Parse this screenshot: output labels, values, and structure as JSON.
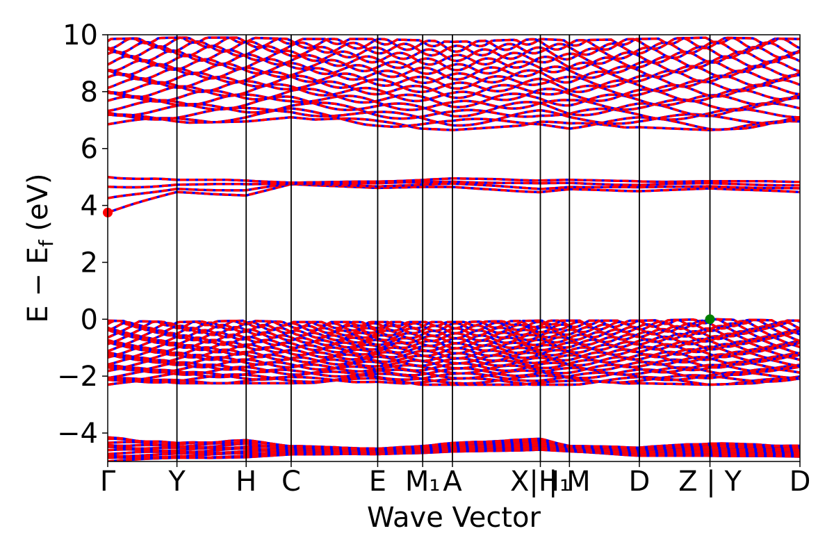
{
  "chart_data": {
    "type": "line",
    "title": "",
    "xlabel": "Wave Vector",
    "ylabel": "E − E",
    "ylabel_sub": "f",
    "ylabel_unit": " (eV)",
    "ylim": [
      -5,
      10
    ],
    "yticks": [
      {
        "value": 10,
        "label": "10"
      },
      {
        "value": 8,
        "label": "8"
      },
      {
        "value": 6,
        "label": "6"
      },
      {
        "value": 4,
        "label": "4"
      },
      {
        "value": 2,
        "label": "2"
      },
      {
        "value": 0,
        "label": "0"
      },
      {
        "value": -2,
        "label": "−2"
      },
      {
        "value": -4,
        "label": "−4"
      }
    ],
    "kpath_ticks": [
      {
        "k": 0.0,
        "label": "Γ"
      },
      {
        "k": 1.0,
        "label": "Y"
      },
      {
        "k": 2.0,
        "label": "H"
      },
      {
        "k": 2.65,
        "label": "C"
      },
      {
        "k": 3.9,
        "label": "E"
      },
      {
        "k": 4.55,
        "label": "M₁"
      },
      {
        "k": 4.98,
        "label": "A"
      },
      {
        "k": 6.25,
        "label": "X|H₁"
      },
      {
        "k": 6.67,
        "label": "|  M"
      },
      {
        "k": 7.68,
        "label": "D"
      },
      {
        "k": 8.7,
        "label": "Z | Y"
      },
      {
        "k": 10.0,
        "label": "D"
      }
    ],
    "kmax": 10.0,
    "highlight_points": [
      {
        "k": 0.0,
        "energy": 3.75,
        "color": "#ff0000",
        "meaning": "CBM"
      },
      {
        "k": 8.7,
        "energy": 0.0,
        "color": "#008000",
        "meaning": "VBM"
      }
    ],
    "band_groups": [
      {
        "name": "",
        "lower": [
          -5.0,
          -4.9,
          -4.85,
          -4.75,
          -4.75,
          -4.7,
          -4.65,
          -4.6,
          -4.65,
          -4.8,
          -4.8,
          -4.85
        ],
        "upper": [
          -4.15,
          -4.35,
          -4.25,
          -4.45,
          -4.55,
          -4.45,
          -4.35,
          -4.2,
          -4.45,
          -4.5,
          -4.35,
          -4.45
        ],
        "count": 12
      },
      {
        "name": "",
        "lower": [
          -2.3,
          -2.25,
          -2.25,
          -2.25,
          -2.2,
          -2.3,
          -2.3,
          -2.3,
          -2.3,
          -2.25,
          -2.3,
          -2.2
        ],
        "upper": [
          -0.05,
          -0.1,
          -0.05,
          -0.1,
          -0.1,
          -0.1,
          -0.1,
          -0.05,
          -0.05,
          -0.05,
          0.0,
          -0.05
        ],
        "count": 26
      },
      {
        "name": "",
        "lower": [
          3.75,
          4.45,
          4.35,
          4.75,
          4.6,
          4.65,
          4.65,
          4.45,
          4.55,
          4.5,
          4.6,
          4.45
        ],
        "upper": [
          5.05,
          4.9,
          4.9,
          4.8,
          4.85,
          4.9,
          4.95,
          4.9,
          4.9,
          4.85,
          4.85,
          4.85
        ],
        "count": 4
      },
      {
        "name": "",
        "lower": [
          6.85,
          6.9,
          6.95,
          7.1,
          6.8,
          6.7,
          6.65,
          6.85,
          6.7,
          6.75,
          6.65,
          6.8
        ],
        "upper": [
          9.85,
          9.9,
          9.9,
          9.85,
          9.85,
          9.8,
          9.75,
          9.85,
          9.8,
          9.85,
          9.9,
          9.85
        ],
        "count": 20
      }
    ],
    "colors": {
      "spin_up": "#ff0000",
      "spin_down": "#0000ff",
      "ticks": "#000000"
    }
  }
}
